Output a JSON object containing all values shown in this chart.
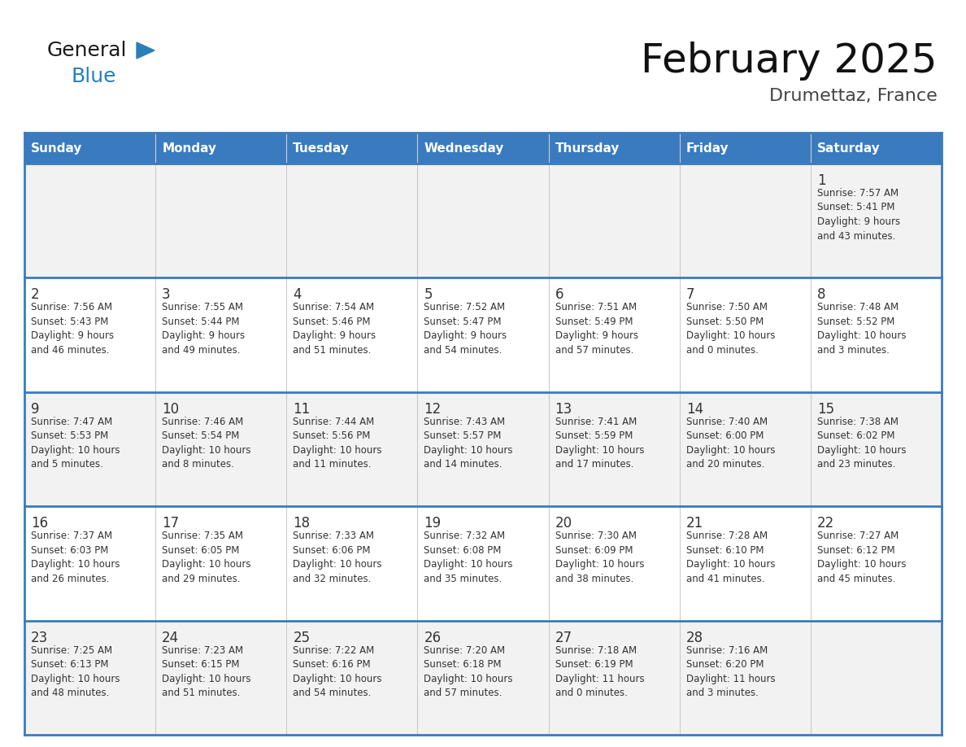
{
  "title": "February 2025",
  "subtitle": "Drumettaz, France",
  "header_bg": "#3a7bbf",
  "header_text": "#ffffff",
  "cell_bg_even": "#f2f2f2",
  "cell_bg_odd": "#ffffff",
  "border_color": "#3a7bbf",
  "text_color": "#333333",
  "day_headers": [
    "Sunday",
    "Monday",
    "Tuesday",
    "Wednesday",
    "Thursday",
    "Friday",
    "Saturday"
  ],
  "days": [
    {
      "day": 1,
      "col": 6,
      "row": 0,
      "sunrise": "7:57 AM",
      "sunset": "5:41 PM",
      "daylight": "9 hours\nand 43 minutes."
    },
    {
      "day": 2,
      "col": 0,
      "row": 1,
      "sunrise": "7:56 AM",
      "sunset": "5:43 PM",
      "daylight": "9 hours\nand 46 minutes."
    },
    {
      "day": 3,
      "col": 1,
      "row": 1,
      "sunrise": "7:55 AM",
      "sunset": "5:44 PM",
      "daylight": "9 hours\nand 49 minutes."
    },
    {
      "day": 4,
      "col": 2,
      "row": 1,
      "sunrise": "7:54 AM",
      "sunset": "5:46 PM",
      "daylight": "9 hours\nand 51 minutes."
    },
    {
      "day": 5,
      "col": 3,
      "row": 1,
      "sunrise": "7:52 AM",
      "sunset": "5:47 PM",
      "daylight": "9 hours\nand 54 minutes."
    },
    {
      "day": 6,
      "col": 4,
      "row": 1,
      "sunrise": "7:51 AM",
      "sunset": "5:49 PM",
      "daylight": "9 hours\nand 57 minutes."
    },
    {
      "day": 7,
      "col": 5,
      "row": 1,
      "sunrise": "7:50 AM",
      "sunset": "5:50 PM",
      "daylight": "10 hours\nand 0 minutes."
    },
    {
      "day": 8,
      "col": 6,
      "row": 1,
      "sunrise": "7:48 AM",
      "sunset": "5:52 PM",
      "daylight": "10 hours\nand 3 minutes."
    },
    {
      "day": 9,
      "col": 0,
      "row": 2,
      "sunrise": "7:47 AM",
      "sunset": "5:53 PM",
      "daylight": "10 hours\nand 5 minutes."
    },
    {
      "day": 10,
      "col": 1,
      "row": 2,
      "sunrise": "7:46 AM",
      "sunset": "5:54 PM",
      "daylight": "10 hours\nand 8 minutes."
    },
    {
      "day": 11,
      "col": 2,
      "row": 2,
      "sunrise": "7:44 AM",
      "sunset": "5:56 PM",
      "daylight": "10 hours\nand 11 minutes."
    },
    {
      "day": 12,
      "col": 3,
      "row": 2,
      "sunrise": "7:43 AM",
      "sunset": "5:57 PM",
      "daylight": "10 hours\nand 14 minutes."
    },
    {
      "day": 13,
      "col": 4,
      "row": 2,
      "sunrise": "7:41 AM",
      "sunset": "5:59 PM",
      "daylight": "10 hours\nand 17 minutes."
    },
    {
      "day": 14,
      "col": 5,
      "row": 2,
      "sunrise": "7:40 AM",
      "sunset": "6:00 PM",
      "daylight": "10 hours\nand 20 minutes."
    },
    {
      "day": 15,
      "col": 6,
      "row": 2,
      "sunrise": "7:38 AM",
      "sunset": "6:02 PM",
      "daylight": "10 hours\nand 23 minutes."
    },
    {
      "day": 16,
      "col": 0,
      "row": 3,
      "sunrise": "7:37 AM",
      "sunset": "6:03 PM",
      "daylight": "10 hours\nand 26 minutes."
    },
    {
      "day": 17,
      "col": 1,
      "row": 3,
      "sunrise": "7:35 AM",
      "sunset": "6:05 PM",
      "daylight": "10 hours\nand 29 minutes."
    },
    {
      "day": 18,
      "col": 2,
      "row": 3,
      "sunrise": "7:33 AM",
      "sunset": "6:06 PM",
      "daylight": "10 hours\nand 32 minutes."
    },
    {
      "day": 19,
      "col": 3,
      "row": 3,
      "sunrise": "7:32 AM",
      "sunset": "6:08 PM",
      "daylight": "10 hours\nand 35 minutes."
    },
    {
      "day": 20,
      "col": 4,
      "row": 3,
      "sunrise": "7:30 AM",
      "sunset": "6:09 PM",
      "daylight": "10 hours\nand 38 minutes."
    },
    {
      "day": 21,
      "col": 5,
      "row": 3,
      "sunrise": "7:28 AM",
      "sunset": "6:10 PM",
      "daylight": "10 hours\nand 41 minutes."
    },
    {
      "day": 22,
      "col": 6,
      "row": 3,
      "sunrise": "7:27 AM",
      "sunset": "6:12 PM",
      "daylight": "10 hours\nand 45 minutes."
    },
    {
      "day": 23,
      "col": 0,
      "row": 4,
      "sunrise": "7:25 AM",
      "sunset": "6:13 PM",
      "daylight": "10 hours\nand 48 minutes."
    },
    {
      "day": 24,
      "col": 1,
      "row": 4,
      "sunrise": "7:23 AM",
      "sunset": "6:15 PM",
      "daylight": "10 hours\nand 51 minutes."
    },
    {
      "day": 25,
      "col": 2,
      "row": 4,
      "sunrise": "7:22 AM",
      "sunset": "6:16 PM",
      "daylight": "10 hours\nand 54 minutes."
    },
    {
      "day": 26,
      "col": 3,
      "row": 4,
      "sunrise": "7:20 AM",
      "sunset": "6:18 PM",
      "daylight": "10 hours\nand 57 minutes."
    },
    {
      "day": 27,
      "col": 4,
      "row": 4,
      "sunrise": "7:18 AM",
      "sunset": "6:19 PM",
      "daylight": "11 hours\nand 0 minutes."
    },
    {
      "day": 28,
      "col": 5,
      "row": 4,
      "sunrise": "7:16 AM",
      "sunset": "6:20 PM",
      "daylight": "11 hours\nand 3 minutes."
    }
  ],
  "logo_general_color": "#1a1a1a",
  "logo_blue_color": "#2980b9",
  "logo_triangle_color": "#2980b9"
}
